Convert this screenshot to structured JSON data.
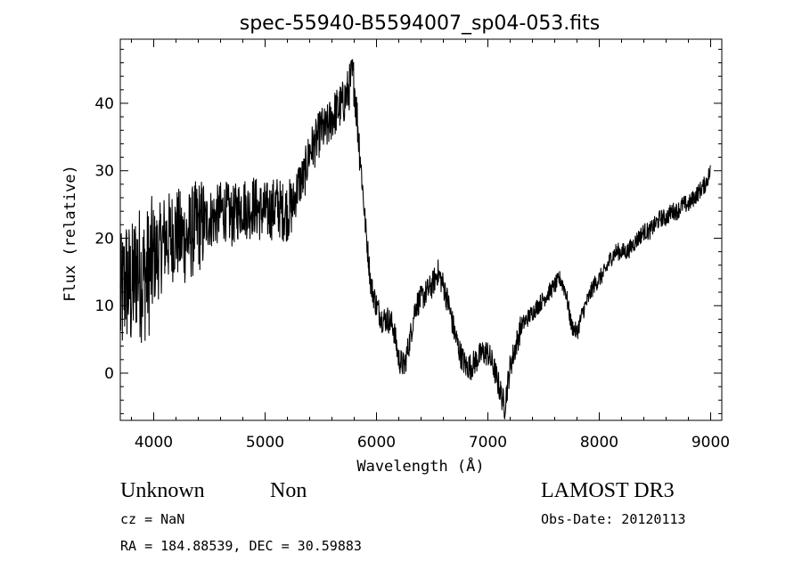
{
  "chart_data": {
    "type": "line",
    "title": "spec-55940-B5594007_sp04-053.fits",
    "xlabel": "Wavelength (Å)",
    "ylabel": "Flux (relative)",
    "xlim": [
      3700,
      9100
    ],
    "ylim": [
      -7,
      49.5
    ],
    "x_ticks": [
      4000,
      5000,
      6000,
      7000,
      8000,
      9000
    ],
    "y_ticks": [
      0,
      10,
      20,
      30,
      40
    ],
    "grid": false,
    "line_color": "#000000",
    "series": [
      {
        "x": [
          3700,
          3750,
          3800,
          3850,
          3900,
          3950,
          4000,
          4050,
          4100,
          4150,
          4200,
          4250,
          4300,
          4350,
          4400,
          4450,
          4500,
          4550,
          4600,
          4650,
          4700,
          4750,
          4800,
          4850,
          4900,
          4950,
          5000,
          5050,
          5100,
          5150,
          5200,
          5250,
          5300,
          5350,
          5400,
          5450,
          5500,
          5550,
          5600,
          5650,
          5700,
          5750,
          5780,
          5800,
          5850,
          5900,
          5950,
          6000,
          6050,
          6100,
          6150,
          6200,
          6250,
          6300,
          6350,
          6400,
          6450,
          6500,
          6550,
          6600,
          6650,
          6700,
          6750,
          6800,
          6850,
          6900,
          6950,
          7000,
          7050,
          7100,
          7150,
          7200,
          7250,
          7300,
          7350,
          7400,
          7450,
          7500,
          7550,
          7600,
          7650,
          7700,
          7750,
          7800,
          7850,
          7900,
          7950,
          8000,
          8050,
          8100,
          8150,
          8200,
          8250,
          8300,
          8350,
          8400,
          8450,
          8500,
          8550,
          8600,
          8650,
          8700,
          8750,
          8800,
          8850,
          8900,
          8950,
          9000
        ],
        "values": [
          10,
          14,
          12,
          16,
          14,
          15,
          17,
          18,
          20,
          20,
          21,
          20,
          20,
          21,
          22,
          22,
          23,
          23,
          24,
          24,
          23,
          24,
          25,
          24,
          25,
          24,
          24,
          24,
          25,
          24,
          24,
          25,
          28,
          29,
          33,
          34,
          36,
          36,
          38,
          39,
          40,
          42,
          44,
          43,
          33,
          22,
          13,
          10,
          8,
          8,
          7,
          2,
          1,
          5,
          10,
          11,
          12,
          13,
          15,
          13,
          10,
          6,
          3,
          1,
          1,
          2,
          3,
          3,
          1,
          -2,
          -5,
          1,
          4,
          7,
          8,
          9,
          10,
          11,
          12,
          13,
          14,
          12,
          7,
          6,
          9,
          11,
          13,
          14,
          15,
          17,
          18,
          18,
          18,
          19,
          20,
          21,
          21,
          22,
          23,
          23,
          24,
          24,
          25,
          25,
          26,
          27,
          28,
          30
        ]
      }
    ],
    "annotations": {
      "object_class": "Unknown",
      "subclass": "Non",
      "survey": "LAMOST DR3",
      "redshift": "cz = NaN",
      "obs_date": "Obs-Date: 20120113",
      "coords": "RA = 184.88539, DEC =  30.59883"
    }
  }
}
